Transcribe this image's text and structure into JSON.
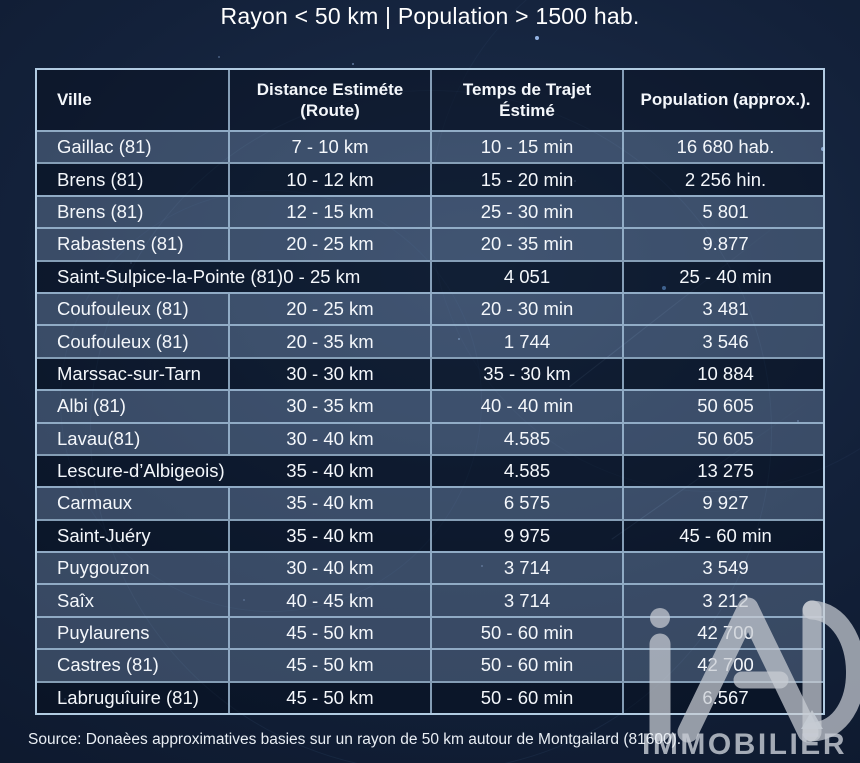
{
  "title": "Rayon < 50 km | Population > 1500 hab.",
  "table": {
    "headers": [
      "Ville",
      "Distance Estiméte (Route)",
      "Temps de Trajet Éstimé",
      "Population (approx.)."
    ],
    "rows": [
      {
        "tone": "light",
        "cells": [
          "Gaillac (81)",
          "7 - 10 km",
          "10 - 15 min",
          "16 680 hab."
        ]
      },
      {
        "tone": "dark",
        "cells": [
          "Brens (81)",
          "10 - 12 km",
          "15 - 20 min",
          "2 256 hin."
        ]
      },
      {
        "tone": "light",
        "cells": [
          "Brens (81)",
          "12 - 15 km",
          "25 - 30 min",
          "5 801"
        ]
      },
      {
        "tone": "light",
        "cells": [
          "Rabastens (81)",
          "20 - 25 km",
          "20 - 35 min",
          "9.877"
        ]
      },
      {
        "tone": "dark",
        "span2": true,
        "cells": [
          "Saint-Sulpice-la-Pointe (81)0 - 25 km",
          "",
          "4 051",
          "25 - 40 min"
        ]
      },
      {
        "tone": "light",
        "cells": [
          "Coufouleux (81)",
          "20 - 25 km",
          "20 - 30 min",
          "3 481"
        ]
      },
      {
        "tone": "light",
        "cells": [
          "Coufouleux (81)",
          "20 - 35 km",
          "1 744",
          "3 546"
        ]
      },
      {
        "tone": "dark",
        "cells": [
          "Marssac-sur-Tarn",
          "30 - 30 km",
          "35 - 30 km",
          "10 884"
        ]
      },
      {
        "tone": "light",
        "cells": [
          "Albi (81)",
          "30 - 35 km",
          "40 - 40 min",
          "50 605"
        ]
      },
      {
        "tone": "light",
        "cells": [
          "Lavau(81)",
          "30 - 40 km",
          "4.585",
          "50 605"
        ]
      },
      {
        "tone": "dark",
        "no_divider": true,
        "cells": [
          "Lescure-d’Albigeois)",
          "35 - 40 km",
          "4.585",
          "13 275"
        ]
      },
      {
        "tone": "light",
        "cells": [
          "Carmaux",
          "35 - 40 km",
          "6 575",
          "9 927"
        ]
      },
      {
        "tone": "dark",
        "cells": [
          "Saint-Juéry",
          "35 - 40 km",
          "9 975",
          "45 - 60 min"
        ]
      },
      {
        "tone": "light",
        "cells": [
          "Puygouzon",
          "30 - 40 km",
          "3 714",
          "3 549"
        ]
      },
      {
        "tone": "light",
        "cells": [
          "Saîx",
          "40 - 45 km",
          "3 714",
          "3 212"
        ]
      },
      {
        "tone": "light",
        "cells": [
          "Puylaurens",
          "45 - 50 km",
          "50 - 60 min",
          "42 700"
        ]
      },
      {
        "tone": "light",
        "cells": [
          "Castres (81)",
          "45 - 50 km",
          "50 - 60 min",
          "42 700"
        ]
      },
      {
        "tone": "dark",
        "cells": [
          "Labruguîuire (81)",
          "45 - 50 km",
          "50 - 60 min",
          "6.567"
        ]
      }
    ]
  },
  "footer": {
    "source": "Source: Donaèes approximatives basies sur un rayon de 50 km autour de Montgailard (81600)."
  },
  "watermark": {
    "brand": "IMMOBILIER",
    "logo": "iad-logo",
    "color": "#c9cdd4"
  },
  "colors": {
    "background": "#13213a",
    "table_border": "#aecbe4",
    "row_light": "#42536b",
    "row_dark": "#14233b",
    "text": "#f4f7fb"
  }
}
